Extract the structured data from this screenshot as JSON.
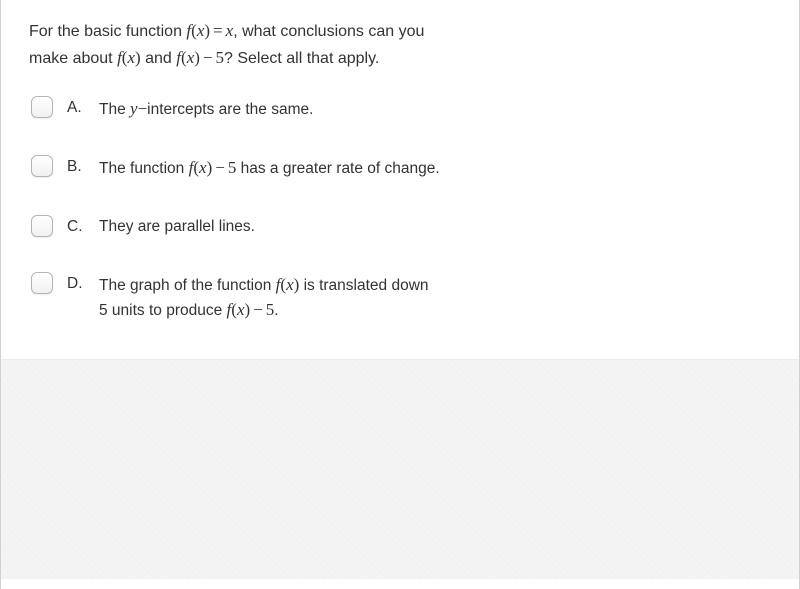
{
  "question": {
    "line1_a": "For the basic function ",
    "line1_b": ", what conclusions can you",
    "line2_a": "make about ",
    "line2_b": " and ",
    "line2_c": "? Select all that apply."
  },
  "options": [
    {
      "letter": "A.",
      "pre": "The ",
      "post": "intercepts are the same."
    },
    {
      "letter": "B.",
      "pre": "The function ",
      "post": " has a greater rate of change."
    },
    {
      "letter": "C.",
      "text": "They are parallel lines."
    },
    {
      "letter": "D.",
      "l1a": "The graph of the function ",
      "l1b": " is translated down",
      "l2a": "5 units to produce ",
      "l2b": "."
    }
  ],
  "math": {
    "f": "f",
    "x": "x",
    "y": "y",
    "eq": "=",
    "minus": "−",
    "five": "5",
    "lpar": "(",
    "rpar": ")",
    "emdash": "—"
  },
  "colors": {
    "border": "#d0d0d0",
    "text": "#333333",
    "footer_bg": "#f3f3f3"
  }
}
